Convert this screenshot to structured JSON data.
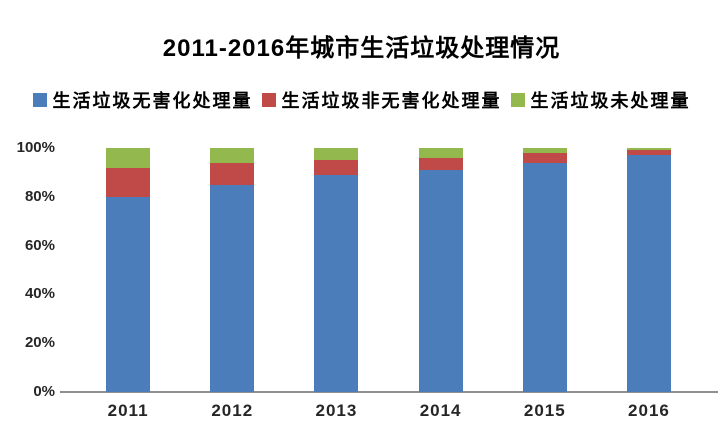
{
  "chart_data": {
    "type": "bar",
    "stacked": true,
    "title": "2011-2016年城市生活垃圾处理情况",
    "unit": "percent",
    "categories": [
      "2011",
      "2012",
      "2013",
      "2014",
      "2015",
      "2016"
    ],
    "series": [
      {
        "name": "生活垃圾无害化处理量",
        "color": "#4B7DBB",
        "values": [
          80,
          85,
          89,
          91,
          94,
          97
        ]
      },
      {
        "name": "生活垃圾非无害化处理量",
        "color": "#C04A47",
        "values": [
          12,
          9,
          6,
          5,
          4,
          2
        ]
      },
      {
        "name": "生活垃圾未处理量",
        "color": "#93B94E",
        "values": [
          8,
          6,
          5,
          4,
          2,
          1
        ]
      }
    ],
    "yticks": [
      "0%",
      "20%",
      "40%",
      "60%",
      "80%",
      "100%"
    ],
    "ylim": [
      0,
      100
    ],
    "xlabel": "",
    "ylabel": "",
    "grid": false,
    "legend_position": "top",
    "axis_line_color": "#8F8F8F",
    "background_color": "#FFFFFF"
  }
}
